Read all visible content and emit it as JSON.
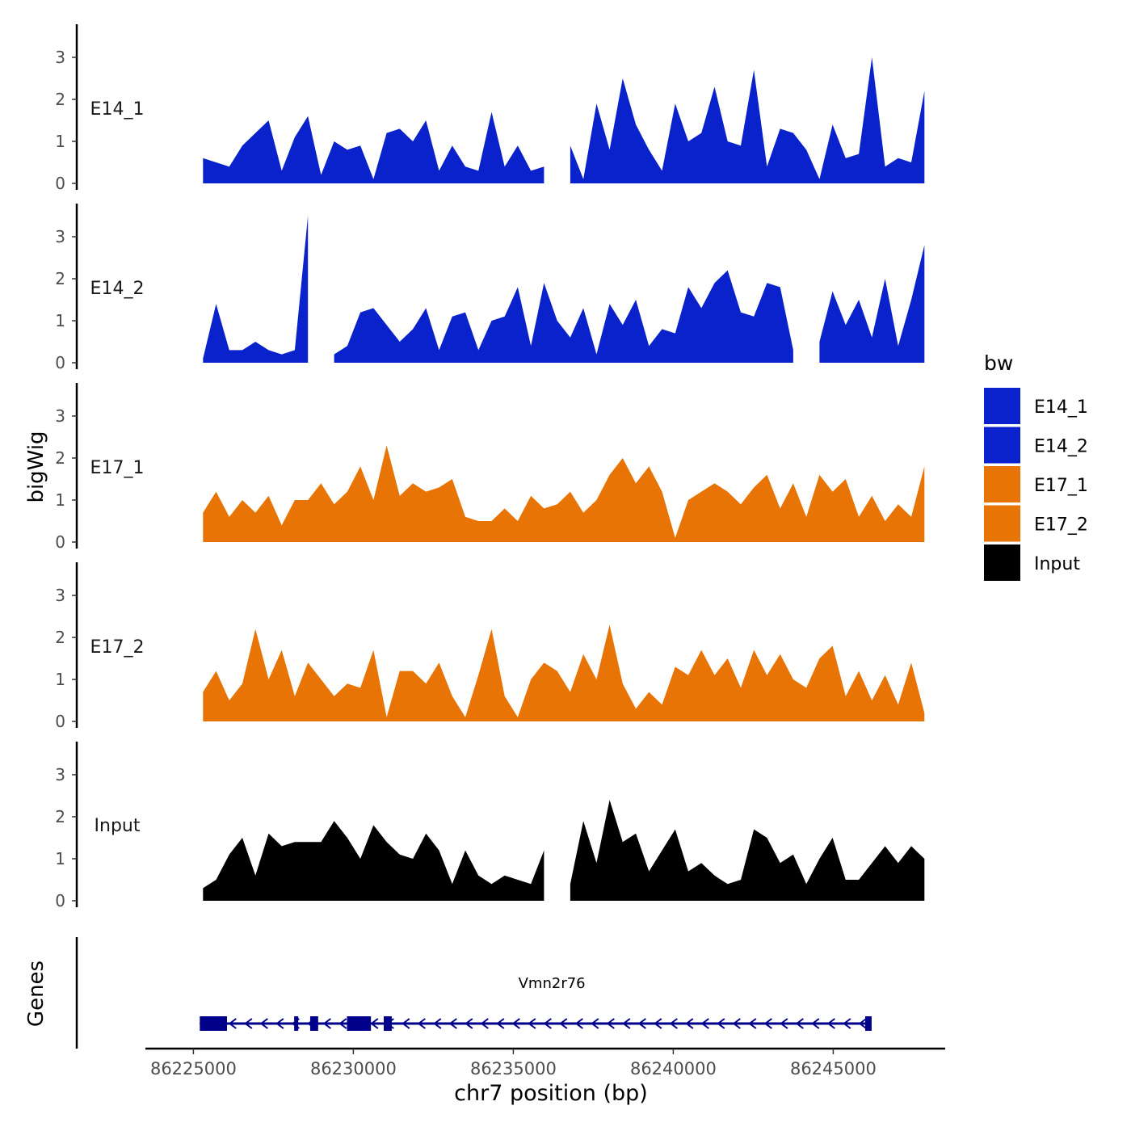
{
  "chart_data": {
    "type": "area",
    "title": "",
    "ylabel_tracks": "bigWig",
    "ylabel_genes": "Genes",
    "xlabel": "chr7 position (bp)",
    "xlim": [
      86223500,
      86248500
    ],
    "ylim": [
      0,
      3.8
    ],
    "x_ticks": [
      86225000,
      86230000,
      86235000,
      86240000,
      86245000
    ],
    "x_tick_labels": [
      "86225000",
      "86230000",
      "86235000",
      "86240000",
      "86245000"
    ],
    "y_ticks": [
      0,
      1,
      2,
      3
    ],
    "y_tick_labels": [
      "0",
      "1",
      "2",
      "3"
    ],
    "legend": {
      "title": "bw",
      "position": "right",
      "entries": [
        {
          "label": "E14_1",
          "color": "#0A22CC"
        },
        {
          "label": "E14_2",
          "color": "#0A22CC"
        },
        {
          "label": "E17_1",
          "color": "#E87405"
        },
        {
          "label": "E17_2",
          "color": "#E87405"
        },
        {
          "label": "Input",
          "color": "#000000"
        }
      ]
    },
    "x": [
      86225300,
      86225710,
      86226120,
      86226530,
      86226940,
      86227350,
      86227760,
      86228170,
      86228580,
      86228990,
      86229400,
      86229810,
      86230220,
      86230630,
      86231040,
      86231450,
      86231860,
      86232270,
      86232680,
      86233090,
      86233500,
      86233910,
      86234320,
      86234730,
      86235140,
      86235550,
      86235960,
      86236370,
      86236780,
      86237190,
      86237600,
      86238010,
      86238420,
      86238830,
      86239240,
      86239650,
      86240060,
      86240470,
      86240880,
      86241290,
      86241700,
      86242110,
      86242520,
      86242930,
      86243340,
      86243750,
      86244160,
      86244570,
      86244980,
      86245390,
      86245800,
      86246210,
      86246620,
      86247030,
      86247440,
      86247850
    ],
    "series": [
      {
        "name": "E14_1",
        "color": "#0A22CC",
        "values": [
          0.6,
          0.5,
          0.4,
          0.9,
          1.2,
          1.5,
          0.3,
          1.1,
          1.6,
          0.2,
          1.0,
          0.8,
          0.9,
          0.1,
          1.2,
          1.3,
          1.0,
          1.5,
          0.3,
          0.9,
          0.4,
          0.3,
          1.7,
          0.4,
          0.9,
          0.3,
          0.4,
          null,
          0.9,
          0.1,
          1.9,
          0.8,
          2.5,
          1.4,
          0.8,
          0.3,
          1.9,
          1.0,
          1.2,
          2.3,
          1.0,
          0.9,
          2.7,
          0.4,
          1.3,
          1.2,
          0.8,
          0.1,
          1.4,
          0.6,
          0.7,
          3.0,
          0.4,
          0.6,
          0.5,
          2.2
        ]
      },
      {
        "name": "E14_2",
        "color": "#0A22CC",
        "values": [
          0.1,
          1.4,
          0.3,
          0.3,
          0.5,
          0.3,
          0.2,
          0.3,
          3.5,
          null,
          0.2,
          0.4,
          1.2,
          1.3,
          0.9,
          0.5,
          0.8,
          1.3,
          0.3,
          1.1,
          1.2,
          0.3,
          1.0,
          1.1,
          1.8,
          0.4,
          1.9,
          1.0,
          0.6,
          1.3,
          0.2,
          1.4,
          0.9,
          1.5,
          0.4,
          0.8,
          0.7,
          1.8,
          1.3,
          1.9,
          2.2,
          1.2,
          1.1,
          1.9,
          1.8,
          0.3,
          null,
          0.5,
          1.7,
          0.9,
          1.5,
          0.6,
          2.0,
          0.4,
          1.5,
          2.8
        ]
      },
      {
        "name": "E17_1",
        "color": "#E87405",
        "values": [
          0.7,
          1.2,
          0.6,
          1.0,
          0.7,
          1.1,
          0.4,
          1.0,
          1.0,
          1.4,
          0.9,
          1.2,
          1.8,
          1.0,
          2.3,
          1.1,
          1.4,
          1.2,
          1.3,
          1.5,
          0.6,
          0.5,
          0.5,
          0.8,
          0.5,
          1.1,
          0.8,
          0.9,
          1.2,
          0.7,
          1.0,
          1.6,
          2.0,
          1.4,
          1.8,
          1.2,
          0.1,
          1.0,
          1.2,
          1.4,
          1.2,
          0.9,
          1.3,
          1.6,
          0.8,
          1.4,
          0.6,
          1.6,
          1.2,
          1.5,
          0.6,
          1.1,
          0.5,
          0.9,
          0.6,
          1.8
        ]
      },
      {
        "name": "E17_2",
        "color": "#E87405",
        "values": [
          0.7,
          1.2,
          0.5,
          0.9,
          2.2,
          1.0,
          1.7,
          0.6,
          1.4,
          1.0,
          0.6,
          0.9,
          0.8,
          1.7,
          0.1,
          1.2,
          1.2,
          0.9,
          1.4,
          0.6,
          0.1,
          1.1,
          2.2,
          0.6,
          0.1,
          1.0,
          1.4,
          1.2,
          0.7,
          1.6,
          1.0,
          2.3,
          0.9,
          0.3,
          0.7,
          0.4,
          1.3,
          1.1,
          1.7,
          1.1,
          1.5,
          0.8,
          1.7,
          1.1,
          1.6,
          1.0,
          0.8,
          1.5,
          1.8,
          0.6,
          1.2,
          0.5,
          1.1,
          0.4,
          1.4,
          0.2
        ]
      },
      {
        "name": "Input",
        "color": "#000000",
        "values": [
          0.3,
          0.5,
          1.1,
          1.5,
          0.6,
          1.6,
          1.3,
          1.4,
          1.4,
          1.4,
          1.9,
          1.5,
          1.0,
          1.8,
          1.4,
          1.1,
          1.0,
          1.6,
          1.2,
          0.4,
          1.2,
          0.6,
          0.4,
          0.6,
          0.5,
          0.4,
          1.2,
          null,
          0.4,
          1.9,
          0.9,
          2.4,
          1.4,
          1.6,
          0.7,
          1.2,
          1.7,
          0.7,
          0.9,
          0.6,
          0.4,
          0.5,
          1.7,
          1.5,
          0.9,
          1.1,
          0.4,
          1.0,
          1.5,
          0.5,
          0.5,
          0.9,
          1.3,
          0.9,
          1.3,
          1.0
        ]
      }
    ],
    "genes": {
      "name": "Vmn2r76",
      "strand": "-",
      "start": 86225200,
      "end": 86246200,
      "color": "#00008B",
      "exons": [
        [
          86225200,
          86226050
        ],
        [
          86228150,
          86228250
        ],
        [
          86228650,
          86228900
        ],
        [
          86229800,
          86230550
        ],
        [
          86230950,
          86231200
        ],
        [
          86246000,
          86246200
        ]
      ]
    }
  }
}
